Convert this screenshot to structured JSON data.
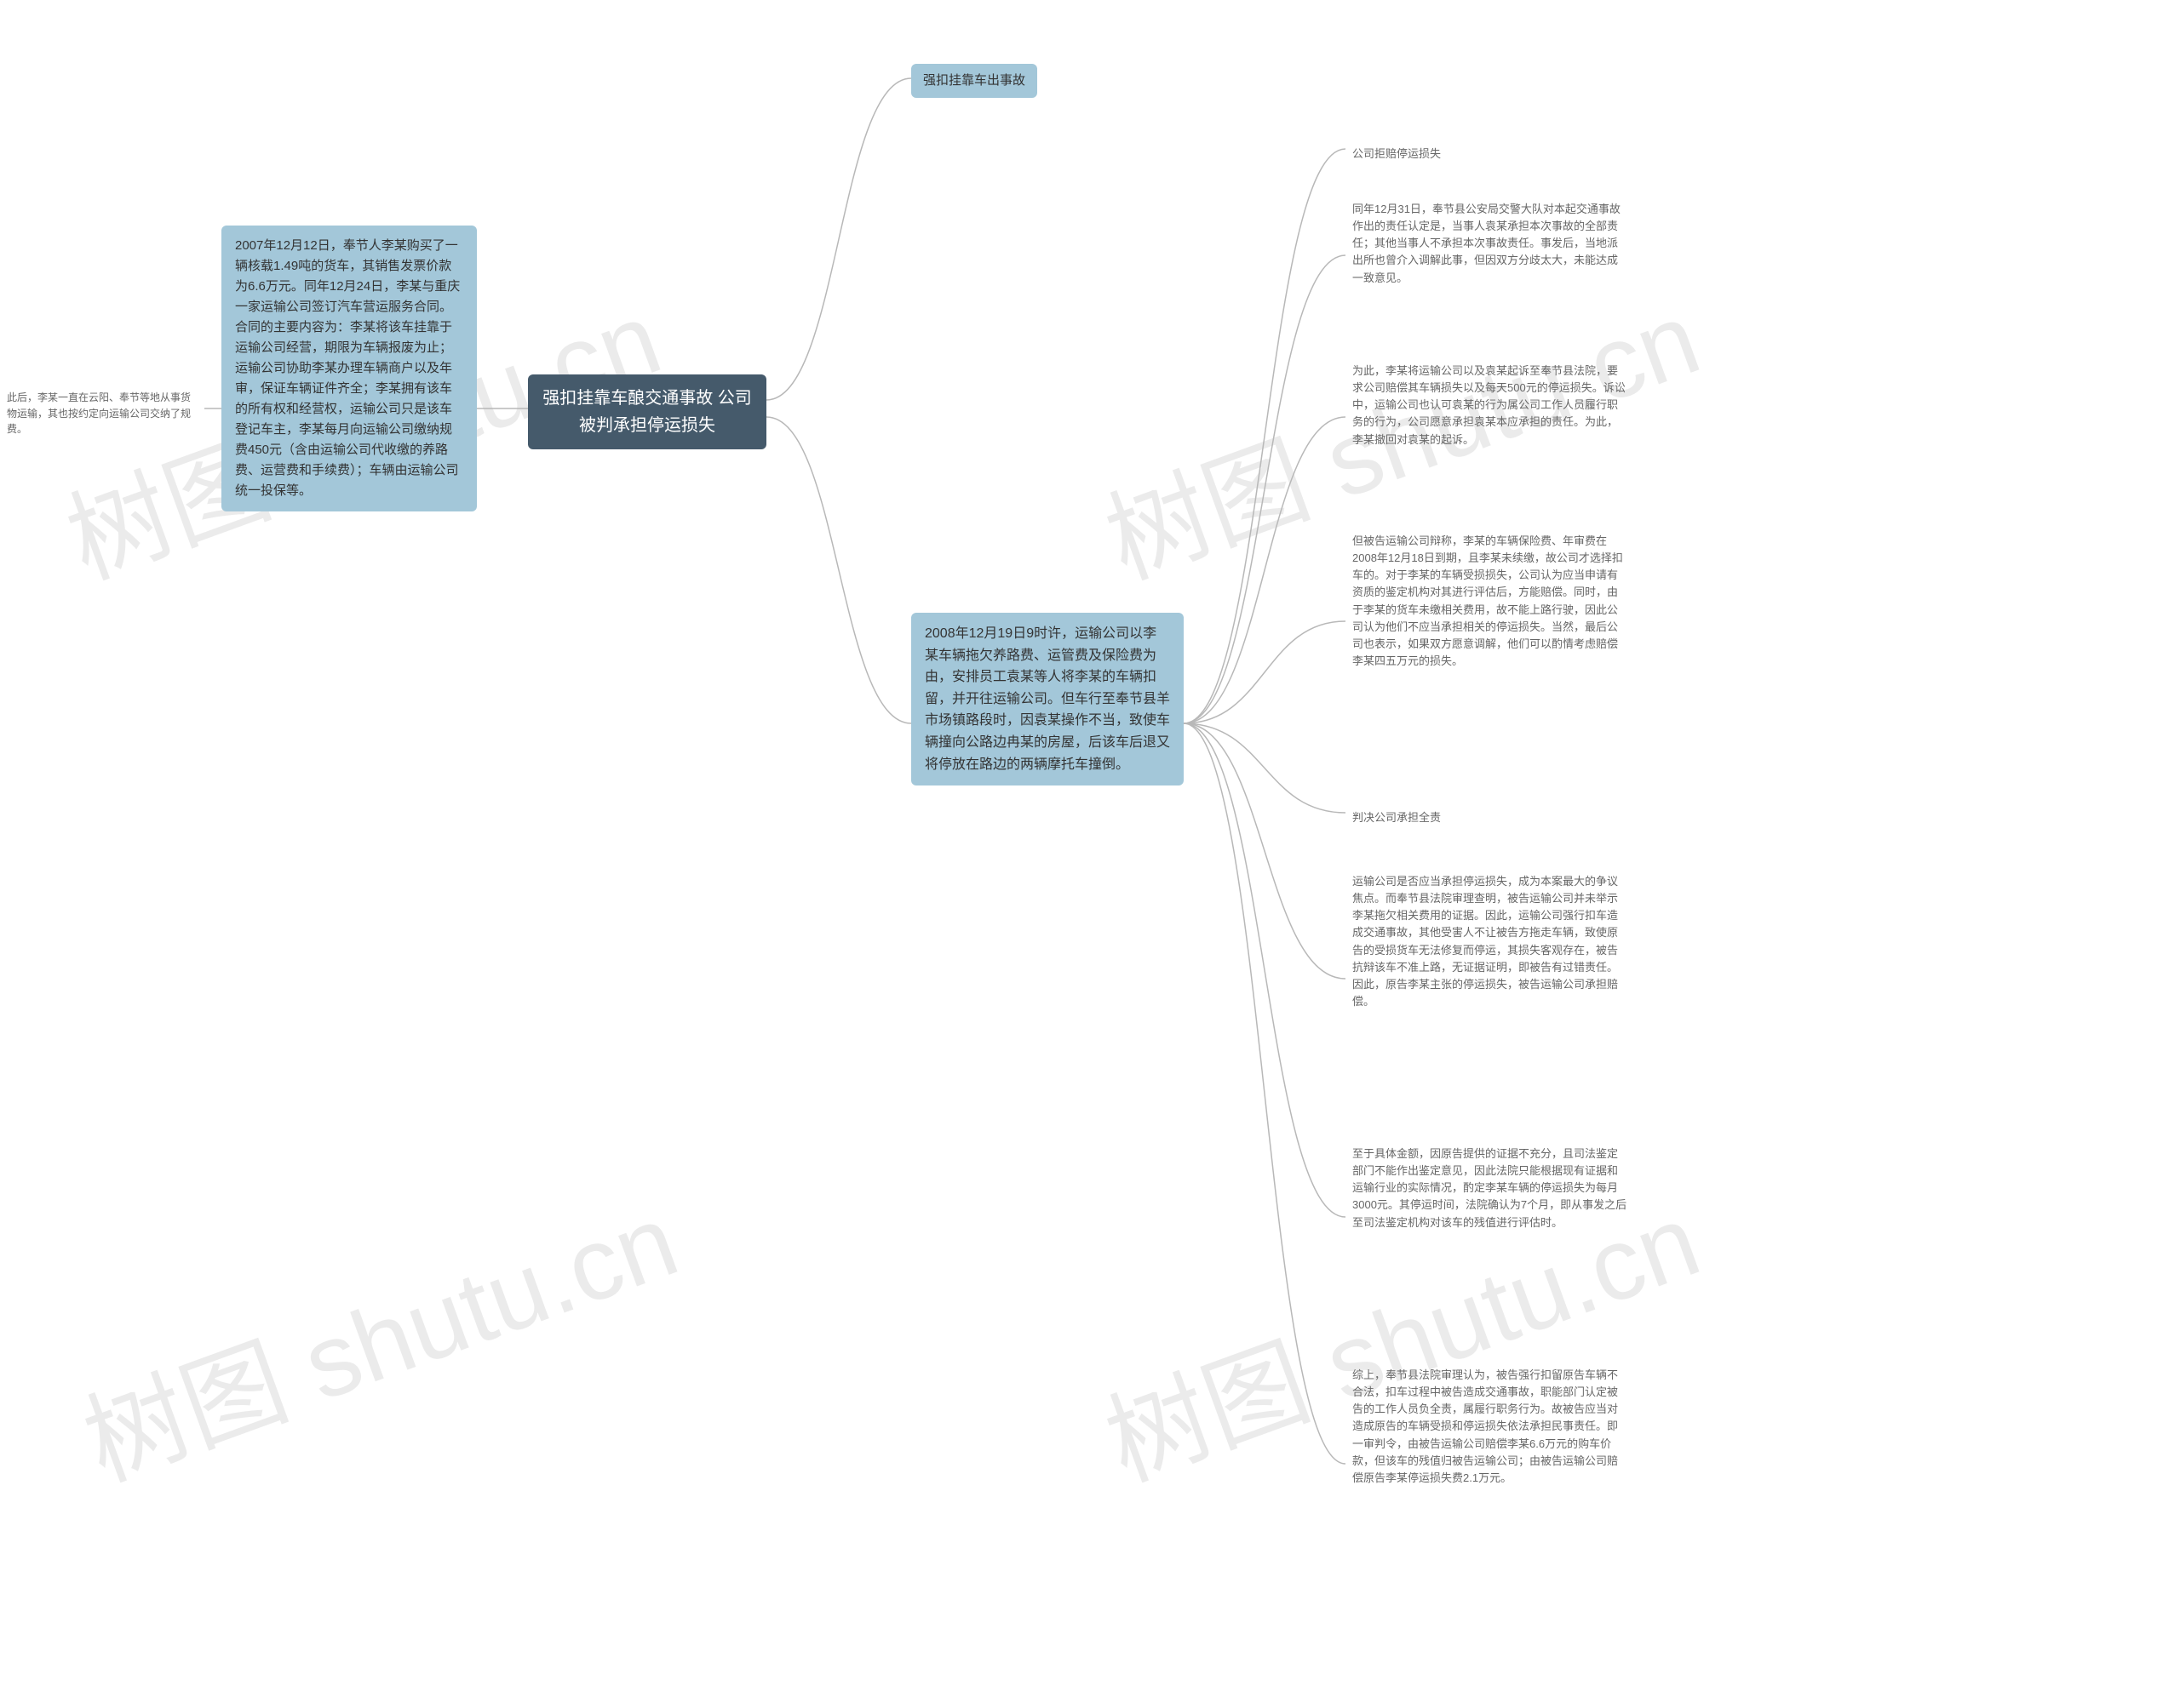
{
  "watermark_text": "树图 shutu.cn",
  "colors": {
    "root_bg": "#455a6b",
    "root_text": "#ffffff",
    "node_bg": "#a3c7d9",
    "node_text": "#333333",
    "leaf_text": "#666666",
    "connector": "#b8b8b8",
    "background": "#ffffff"
  },
  "root": {
    "label": "强扣挂靠车酿交通事故 公司被判承担停运损失"
  },
  "left": {
    "main": "2007年12月12日，奉节人李某购买了一辆核载1.49吨的货车，其销售发票价款为6.6万元。同年12月24日，李某与重庆一家运输公司签订汽车营运服务合同。合同的主要内容为：李某将该车挂靠于运输公司经营，期限为车辆报废为止；运输公司协助李某办理车辆商户以及年审，保证车辆证件齐全；李某拥有该车的所有权和经营权，运输公司只是该车登记车主，李某每月向运输公司缴纳规费450元（含由运输公司代收缴的养路费、运营费和手续费）；车辆由运输公司统一投保等。",
    "sub": "此后，李某一直在云阳、奉节等地从事货物运输，其也按约定向运输公司交纳了规费。"
  },
  "right": {
    "top": "强扣挂靠车出事故",
    "main": "2008年12月19日9时许，运输公司以李某车辆拖欠养路费、运管费及保险费为由，安排员工袁某等人将李某的车辆扣留，并开往运输公司。但车行至奉节县羊市场镇路段时，因袁某操作不当，致使车辆撞向公路边冉某的房屋，后该车后退又将停放在路边的两辆摩托车撞倒。",
    "details": {
      "d1": "公司拒赔停运损失",
      "d2": "同年12月31日，奉节县公安局交警大队对本起交通事故作出的责任认定是，当事人袁某承担本次事故的全部责任；其他当事人不承担本次事故责任。事发后，当地派出所也曾介入调解此事，但因双方分歧太大，未能达成一致意见。",
      "d3": "为此，李某将运输公司以及袁某起诉至奉节县法院，要求公司赔偿其车辆损失以及每天500元的停运损失。诉讼中，运输公司也认可袁某的行为属公司工作人员履行职务的行为，公司愿意承担袁某本应承担的责任。为此，李某撤回对袁某的起诉。",
      "d4": "但被告运输公司辩称，李某的车辆保险费、年审费在2008年12月18日到期，且李某未续缴，故公司才选择扣车的。对于李某的车辆受损损失，公司认为应当申请有资质的鉴定机构对其进行评估后，方能赔偿。同时，由于李某的货车未缴相关费用，故不能上路行驶，因此公司认为他们不应当承担相关的停运损失。当然，最后公司也表示，如果双方愿意调解，他们可以酌情考虑赔偿李某四五万元的损失。",
      "d5": "判决公司承担全责",
      "d6": "运输公司是否应当承担停运损失，成为本案最大的争议焦点。而奉节县法院审理查明，被告运输公司并未举示李某拖欠相关费用的证据。因此，运输公司强行扣车造成交通事故，其他受害人不让被告方拖走车辆，致使原告的受损货车无法修复而停运，其损失客观存在，被告抗辩该车不准上路，无证据证明，即被告有过错责任。因此，原告李某主张的停运损失，被告运输公司承担赔偿。",
      "d7": "至于具体金额，因原告提供的证据不充分，且司法鉴定部门不能作出鉴定意见，因此法院只能根据现有证据和运输行业的实际情况，酌定李某车辆的停运损失为每月3000元。其停运时间，法院确认为7个月，即从事发之后至司法鉴定机构对该车的残值进行评估时。",
      "d8": "综上，奉节县法院审理认为，被告强行扣留原告车辆不合法，扣车过程中被告造成交通事故，职能部门认定被告的工作人员负全责，属履行职务行为。故被告应当对造成原告的车辆受损和停运损失依法承担民事责任。即一审判令，由被告运输公司赔偿李某6.6万元的购车价款，但该车的残值归被告运输公司；由被告运输公司赔偿原告李某停运损失费2.1万元。"
    }
  }
}
